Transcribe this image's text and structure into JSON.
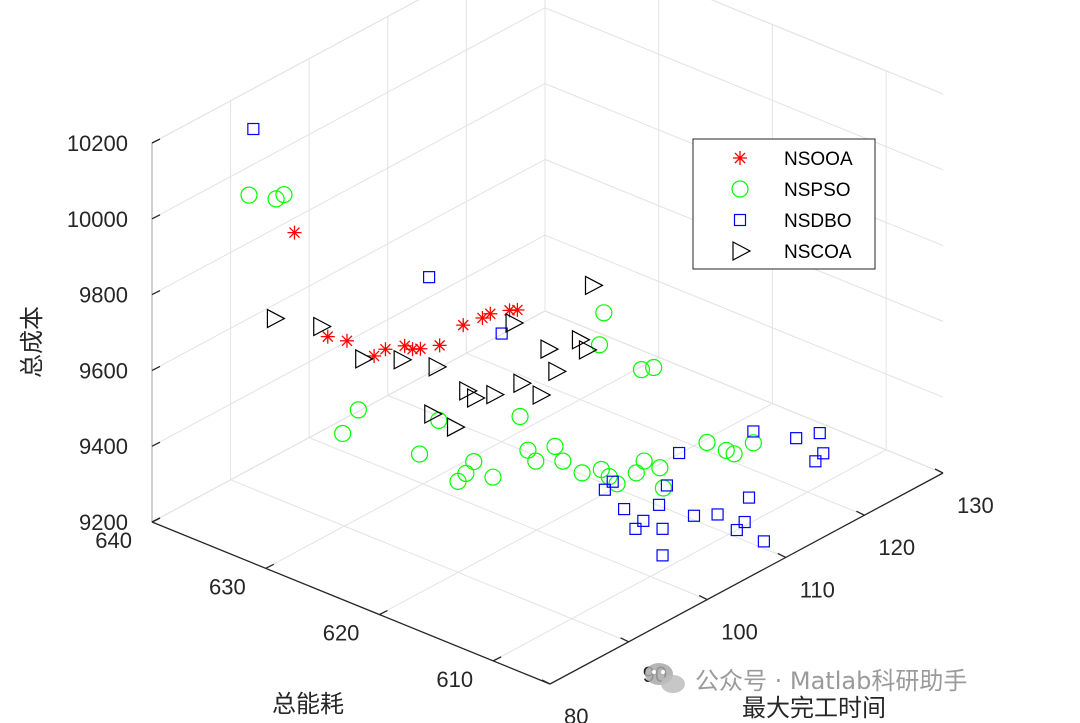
{
  "chart_data": {
    "type": "scatter",
    "dimensions": 3,
    "x_axis": {
      "label": "最大完工时间",
      "lim": [
        80,
        130
      ],
      "ticks": [
        "80",
        "90",
        "100",
        "110",
        "120",
        "130"
      ]
    },
    "y_axis": {
      "label": "总能耗",
      "lim": [
        605,
        640
      ],
      "ticks": [
        "610",
        "620",
        "630",
        "640"
      ]
    },
    "z_axis": {
      "label": "总成本",
      "lim": [
        9200,
        10200
      ],
      "ticks": [
        "9200",
        "9400",
        "9600",
        "9800",
        "10000",
        "10200"
      ]
    },
    "grid": true,
    "legend_position": "top-right",
    "series": [
      {
        "name": "NSOOA",
        "marker": "asterisk",
        "color": "#ff0000",
        "points": [
          [
            88,
            633,
            9960
          ],
          [
            85,
            628,
            9780
          ],
          [
            86,
            627,
            9770
          ],
          [
            88,
            625,
            9750
          ],
          [
            89,
            624,
            9760
          ],
          [
            90,
            624,
            9740
          ],
          [
            91,
            624,
            9730
          ],
          [
            92,
            623,
            9740
          ],
          [
            95,
            623,
            9760
          ],
          [
            96,
            622,
            9780
          ],
          [
            97,
            622,
            9780
          ],
          [
            98,
            621,
            9790
          ],
          [
            99,
            621,
            9780
          ],
          [
            88,
            626,
            9720
          ]
        ]
      },
      {
        "name": "NSPSO",
        "marker": "circle",
        "color": "#00ff00",
        "points": [
          [
            88,
            637,
            10010
          ],
          [
            90,
            636,
            9990
          ],
          [
            91,
            636,
            9990
          ],
          [
            84,
            626,
            9560
          ],
          [
            86,
            626,
            9600
          ],
          [
            88,
            622,
            9510
          ],
          [
            89,
            621,
            9600
          ],
          [
            90,
            620,
            9440
          ],
          [
            91,
            620,
            9450
          ],
          [
            92,
            620,
            9470
          ],
          [
            93,
            619,
            9430
          ],
          [
            95,
            618,
            9580
          ],
          [
            96,
            618,
            9480
          ],
          [
            97,
            618,
            9440
          ],
          [
            98,
            617,
            9480
          ],
          [
            99,
            617,
            9430
          ],
          [
            100,
            616,
            9400
          ],
          [
            101,
            615,
            9410
          ],
          [
            102,
            615,
            9380
          ],
          [
            103,
            615,
            9350
          ],
          [
            104,
            614,
            9380
          ],
          [
            105,
            614,
            9400
          ],
          [
            108,
            620,
            9600
          ],
          [
            110,
            621,
            9650
          ],
          [
            112,
            618,
            9520
          ],
          [
            113,
            614,
            9360
          ],
          [
            114,
            613,
            9340
          ],
          [
            115,
            613,
            9320
          ],
          [
            116,
            612,
            9350
          ],
          [
            106,
            613,
            9330
          ],
          [
            107,
            614,
            9360
          ],
          [
            109,
            617,
            9560
          ]
        ]
      },
      {
        "name": "NSDBO",
        "marker": "square",
        "color": "#0000ff",
        "points": [
          [
            90,
            638,
            10150
          ],
          [
            95,
            626,
            9850
          ],
          [
            97,
            621,
            9740
          ],
          [
            100,
            614,
            9380
          ],
          [
            101,
            614,
            9390
          ],
          [
            101,
            613,
            9330
          ],
          [
            102,
            612,
            9300
          ],
          [
            103,
            611,
            9280
          ],
          [
            103,
            611,
            9210
          ],
          [
            104,
            612,
            9320
          ],
          [
            105,
            612,
            9360
          ],
          [
            107,
            611,
            9270
          ],
          [
            108,
            613,
            9400
          ],
          [
            110,
            611,
            9240
          ],
          [
            111,
            610,
            9200
          ],
          [
            112,
            610,
            9210
          ],
          [
            113,
            609,
            9160
          ],
          [
            114,
            611,
            9240
          ],
          [
            116,
            612,
            9380
          ],
          [
            120,
            611,
            9330
          ],
          [
            121,
            610,
            9270
          ],
          [
            122,
            610,
            9280
          ],
          [
            123,
            611,
            9310
          ],
          [
            101,
            612,
            9290
          ]
        ]
      },
      {
        "name": "NSCOA",
        "marker": "triangle-right",
        "color": "#000000",
        "points": [
          [
            84,
            632,
            9790
          ],
          [
            87,
            630,
            9760
          ],
          [
            88,
            627,
            9700
          ],
          [
            90,
            625,
            9700
          ],
          [
            91,
            621,
            9560
          ],
          [
            93,
            624,
            9660
          ],
          [
            94,
            622,
            9610
          ],
          [
            95,
            622,
            9580
          ],
          [
            96,
            621,
            9590
          ],
          [
            97,
            620,
            9780
          ],
          [
            98,
            620,
            9610
          ],
          [
            99,
            619,
            9580
          ],
          [
            100,
            619,
            9690
          ],
          [
            101,
            619,
            9620
          ],
          [
            102,
            617,
            9690
          ],
          [
            104,
            619,
            9670
          ],
          [
            110,
            622,
            9710
          ],
          [
            91,
            623,
            9570
          ]
        ]
      }
    ]
  },
  "watermark": {
    "text": "公众号 · Matlab科研助手",
    "icon": "wechat-bubble-icon"
  }
}
